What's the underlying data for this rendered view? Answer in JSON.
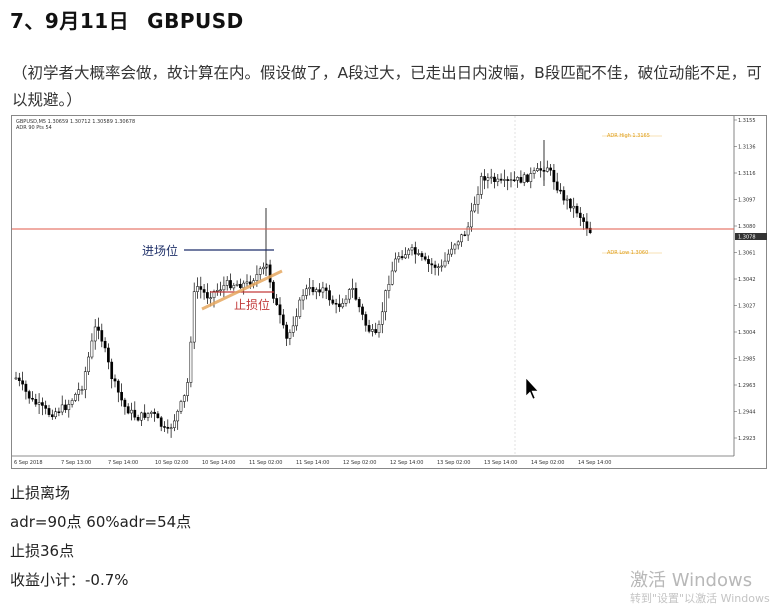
{
  "heading": {
    "date": "7、9月11日",
    "symbol": "GBPUSD"
  },
  "note": "（初学者大概率会做，故计算在内。假设做了，A段过大，已走出日内波幅，B段匹配不佳，破位动能不足，可以规避。）",
  "chart": {
    "info_line1": "GBPUSD,M5 1.30659 1.30712 1.30589 1.30678",
    "info_line2": "ADR 90 Pts 54",
    "annotation_entry": "进场位",
    "annotation_stop": "止损位",
    "price_labels": [
      "1.3155",
      "1.3136",
      "1.3116",
      "1.3097",
      "1.3080",
      "1.3061",
      "1.3042",
      "1.3027",
      "1.3004",
      "1.2985",
      "1.2963",
      "1.2944",
      "1.2923"
    ],
    "time_labels": [
      "6 Sep 2018",
      "7 Sep 13:00",
      "7 Sep 14:00",
      "10 Sep 02:00",
      "10 Sep 14:00",
      "11 Sep 02:00",
      "11 Sep 14:00",
      "12 Sep 02:00",
      "12 Sep 14:00",
      "13 Sep 02:00",
      "13 Sep 14:00",
      "14 Sep 02:00",
      "14 Sep 14:00"
    ],
    "level_label_top": "ADR High 1.3165",
    "level_label_bottom": "ADR Low 1.3060",
    "current_price": "1.3078",
    "colors": {
      "resistance_line": "#e25a4a",
      "entry_line": "#1e2f6b",
      "stop_line": "#c43b3b",
      "trend_line": "#e6a860",
      "candle": "#000000"
    }
  },
  "bottom": {
    "line1": "止损离场",
    "line2": "adr=90点    60%adr=54点",
    "line3": "止损36点",
    "line4": "收益小计：-0.7%"
  },
  "watermark": {
    "line1": "激活 Windows",
    "line2": "转到\"设置\"以激活 Windows"
  }
}
